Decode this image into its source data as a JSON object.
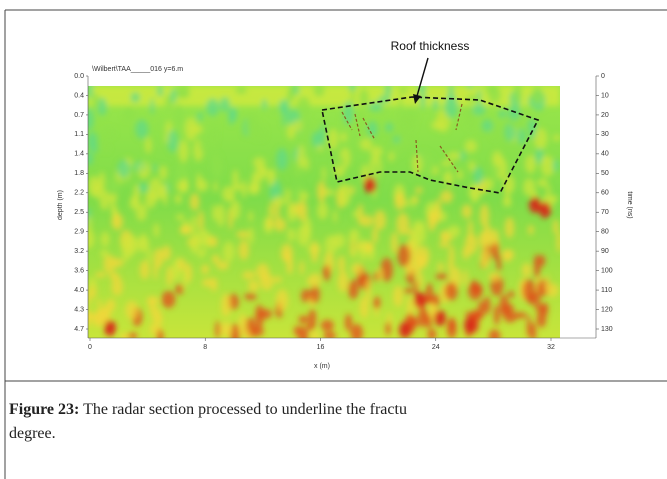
{
  "figure": {
    "header_text": "\\Wilbert\\TAA_____016   y=6.m",
    "annotation": "Roof thickness",
    "y_axis": {
      "label": "depth (m)",
      "ticks": [
        "0.0",
        "0.4",
        "0.7",
        "1.1",
        "1.4",
        "1.8",
        "2.2",
        "2.5",
        "2.9",
        "3.2",
        "3.6",
        "4.0",
        "4.3",
        "4.7"
      ]
    },
    "y2_axis": {
      "label": "time (ns)",
      "ticks": [
        "0",
        "10",
        "20",
        "30",
        "40",
        "50",
        "60",
        "70",
        "80",
        "90",
        "100",
        "110",
        "120",
        "130"
      ]
    },
    "x_axis": {
      "label": "x (m)",
      "ticks": [
        "0",
        "8",
        "16",
        "24",
        "32"
      ]
    }
  },
  "caption": {
    "label": "Figure 23:",
    "text": "The radar section processed to underline the fractu",
    "text_line2": "degree."
  }
}
